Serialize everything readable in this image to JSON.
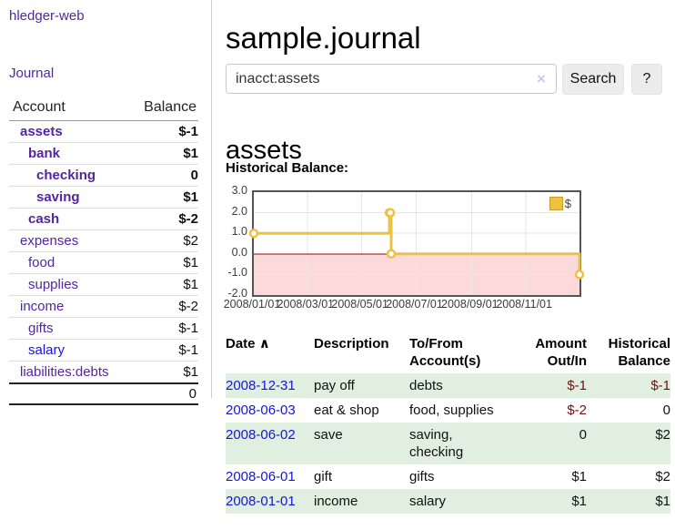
{
  "app_title": "hledger-web",
  "sidebar": {
    "journal_link": "Journal",
    "accounts_table": {
      "account_header": "Account",
      "balance_header": "Balance",
      "rows": [
        {
          "name": "assets",
          "indent": 1,
          "bold": true,
          "balance": "$-1",
          "neg": "dark",
          "link": "purple"
        },
        {
          "name": "bank",
          "indent": 2,
          "bold": true,
          "balance": "$1",
          "neg": null,
          "link": "purple"
        },
        {
          "name": "checking",
          "indent": 3,
          "bold": true,
          "balance": "0",
          "neg": null,
          "link": "purple"
        },
        {
          "name": "saving",
          "indent": 3,
          "bold": true,
          "balance": "$1",
          "neg": null,
          "link": "purple"
        },
        {
          "name": "cash",
          "indent": 2,
          "bold": true,
          "balance": "$-2",
          "neg": "dark",
          "link": "purple"
        },
        {
          "name": "expenses",
          "indent": 1,
          "bold": false,
          "balance": "$2",
          "neg": null,
          "link": "purple"
        },
        {
          "name": "food",
          "indent": 2,
          "bold": false,
          "balance": "$1",
          "neg": null,
          "link": "purple"
        },
        {
          "name": "supplies",
          "indent": 2,
          "bold": false,
          "balance": "$1",
          "neg": null,
          "link": "purple"
        },
        {
          "name": "income",
          "indent": 1,
          "bold": false,
          "balance": "$-2",
          "neg": "light",
          "link": "purple"
        },
        {
          "name": "gifts",
          "indent": 2,
          "bold": false,
          "balance": "$-1",
          "neg": "light",
          "link": "purple"
        },
        {
          "name": "salary",
          "indent": 2,
          "bold": false,
          "balance": "$-1",
          "neg": "light",
          "link": "blue"
        },
        {
          "name": "liabilities:debts",
          "indent": 1,
          "bold": false,
          "balance": "$1",
          "neg": null,
          "link": "purple"
        }
      ],
      "total": "0"
    }
  },
  "main": {
    "title": "sample.journal",
    "search": {
      "value": "inacct:assets",
      "clear_icon": "×",
      "search_button": "Search",
      "help_button": "?"
    },
    "account_heading": "assets",
    "chart_label": "Historical Balance:",
    "register": {
      "headers": {
        "date": "Date",
        "sort_icon": "∧",
        "description": "Description",
        "accounts_line1": "To/From",
        "accounts_line2": "Account(s)",
        "amount_line1": "Amount",
        "amount_line2": "Out/In",
        "balance_line1": "Historical",
        "balance_line2": "Balance"
      },
      "rows": [
        {
          "date": "2008-12-31",
          "description": "pay off",
          "accounts": "debts",
          "amount": "$-1",
          "amount_neg": true,
          "balance": "$-1",
          "balance_neg": true,
          "shaded": true
        },
        {
          "date": "2008-06-03",
          "description": "eat & shop",
          "accounts": "food, supplies",
          "amount": "$-2",
          "amount_neg": true,
          "balance": "0",
          "balance_neg": false,
          "shaded": false
        },
        {
          "date": "2008-06-02",
          "description": "save",
          "accounts": "saving, checking",
          "amount": "0",
          "amount_neg": false,
          "balance": "$2",
          "balance_neg": false,
          "shaded": true
        },
        {
          "date": "2008-06-01",
          "description": "gift",
          "accounts": "gifts",
          "amount": "$1",
          "amount_neg": false,
          "balance": "$2",
          "balance_neg": false,
          "shaded": false
        },
        {
          "date": "2008-01-01",
          "description": "income",
          "accounts": "salary",
          "amount": "$1",
          "amount_neg": false,
          "balance": "$1",
          "balance_neg": false,
          "shaded": true
        }
      ]
    }
  },
  "chart_data": {
    "type": "line",
    "step": true,
    "title": "Historical Balance:",
    "series": [
      {
        "name": "$",
        "points": [
          {
            "date": "2008-01-01",
            "value": 1
          },
          {
            "date": "2008-06-01",
            "value": 2
          },
          {
            "date": "2008-06-02",
            "value": 2
          },
          {
            "date": "2008-06-03",
            "value": 0
          },
          {
            "date": "2008-12-31",
            "value": -1
          }
        ]
      }
    ],
    "x_range": [
      "2008-01-01",
      "2008-12-31"
    ],
    "y_range": [
      -2,
      3
    ],
    "x_tick_dates": [
      "2008-01-01",
      "2008-03-01",
      "2008-05-01",
      "2008-07-01",
      "2008-09-01",
      "2008-11-01"
    ],
    "x_tick_labels": [
      "2008/01/01",
      "2008/03/01",
      "2008/05/01",
      "2008/07/01",
      "2008/09/01",
      "2008/11/01"
    ],
    "y_tick_values": [
      3,
      2,
      1,
      0,
      -1,
      -2
    ],
    "y_tick_labels": [
      "3.0",
      "2.0",
      "1.0",
      "0.0",
      "-1.0",
      "-2.0"
    ],
    "legend": {
      "label": "$",
      "position": "top-right"
    },
    "grid": true,
    "colors": {
      "line": "#edc240",
      "marker_fill": "#ffffff",
      "negative_fill": "#fcdada",
      "zero_line": "#aa0000",
      "grid": "#e6e6e6",
      "border": "#545454"
    }
  }
}
